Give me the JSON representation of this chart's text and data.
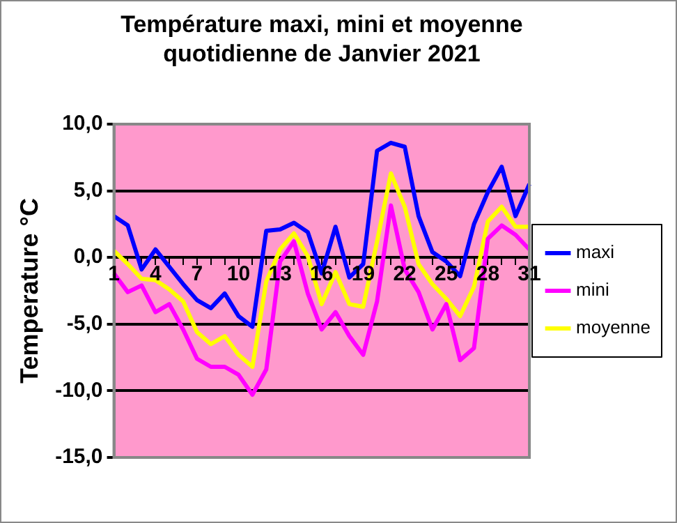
{
  "chart_data": {
    "type": "line",
    "title": "Température maxi, mini et moyenne quotidienne de Janvier 2021",
    "ylabel": "Temperature °C",
    "categories": [
      "1",
      null,
      null,
      "4",
      null,
      null,
      "7",
      null,
      null,
      "10",
      null,
      null,
      "13",
      null,
      null,
      "16",
      null,
      null,
      "19",
      null,
      null,
      "22",
      null,
      null,
      "25",
      null,
      null,
      "28",
      null,
      null,
      "31"
    ],
    "series": [
      {
        "name": "maxi",
        "color": "#0000ff",
        "values": [
          3.1,
          2.4,
          -0.9,
          0.6,
          -0.7,
          -2.0,
          -3.2,
          -3.8,
          -2.7,
          -4.4,
          -5.2,
          2.0,
          2.1,
          2.6,
          1.9,
          -1.2,
          2.3,
          -1.5,
          -0.5,
          8.0,
          8.6,
          8.3,
          3.1,
          0.4,
          -0.3,
          -1.4,
          2.5,
          4.9,
          6.8,
          3.1,
          5.5
        ]
      },
      {
        "name": "mini",
        "color": "#ff00ff",
        "values": [
          -1.2,
          -2.6,
          -2.1,
          -4.1,
          -3.5,
          -5.4,
          -7.6,
          -8.2,
          -8.2,
          -8.8,
          -10.3,
          -8.4,
          -0.3,
          1.2,
          -2.7,
          -5.4,
          -4.1,
          -5.9,
          -7.3,
          -3.3,
          3.9,
          -0.9,
          -2.6,
          -5.4,
          -3.5,
          -7.7,
          -6.8,
          1.4,
          2.4,
          1.7,
          0.6
        ]
      },
      {
        "name": "moyenne",
        "color": "#ffff00",
        "values": [
          0.5,
          -0.5,
          -1.6,
          -1.7,
          -2.4,
          -3.3,
          -5.6,
          -6.5,
          -5.9,
          -7.3,
          -8.2,
          -1.8,
          0.6,
          1.8,
          0.1,
          -3.5,
          -1.1,
          -3.5,
          -3.7,
          1.2,
          6.3,
          3.8,
          -0.5,
          -2.0,
          -3.1,
          -4.4,
          -2.2,
          2.7,
          3.8,
          2.3,
          2.3
        ]
      }
    ],
    "ylim": [
      -15,
      10
    ],
    "yticks": [
      {
        "value": -15,
        "label": "-15,0"
      },
      {
        "value": -10,
        "label": "-10,0"
      },
      {
        "value": -5,
        "label": "-5,0"
      },
      {
        "value": 0,
        "label": "0,0"
      },
      {
        "value": 5,
        "label": "5,0"
      },
      {
        "value": 10,
        "label": "10,0"
      }
    ],
    "grid": "y",
    "legend": "right",
    "marker": "none",
    "line_style": "solid"
  }
}
